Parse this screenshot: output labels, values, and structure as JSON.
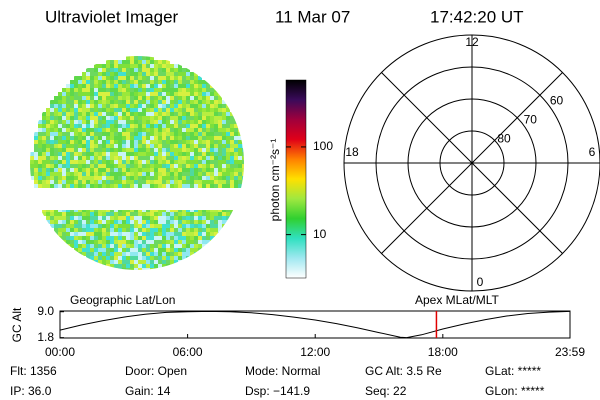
{
  "header": {
    "title": "Ultraviolet Imager",
    "date": "11 Mar 07",
    "time": "17:42:20 UT"
  },
  "chart_data": [
    {
      "type": "colorbar",
      "label": "photon cm⁻²s⁻¹",
      "scale": "log",
      "ylim": [
        3.2,
        580
      ],
      "yticks": [
        10,
        100
      ],
      "colors": [
        "#000000",
        "#3a0a5a",
        "#a0003c",
        "#e00018",
        "#ff8000",
        "#ffe000",
        "#a0e840",
        "#30d030",
        "#30e0c0",
        "#a0e8f0",
        "#ffffff"
      ]
    },
    {
      "type": "polar",
      "rlim": [
        90,
        50
      ],
      "rticks": [
        80,
        70,
        60
      ],
      "thetaticks": [
        0,
        6,
        12,
        18
      ],
      "color": "#000000"
    },
    {
      "type": "line",
      "ylabel": "GC Alt",
      "left_label": "Geographic Lat/Lon",
      "right_label": "Apex MLat/MLT",
      "x": [
        0,
        1,
        2,
        3,
        4,
        5,
        6,
        7,
        8,
        9,
        10,
        11,
        12,
        13,
        14,
        15,
        16,
        16.3,
        17,
        18,
        19,
        20,
        21,
        22,
        23,
        23.98
      ],
      "values": [
        3.9,
        5.3,
        6.5,
        7.5,
        8.3,
        8.8,
        9.0,
        9.1,
        9.0,
        8.7,
        8.2,
        7.5,
        6.7,
        5.7,
        4.5,
        3.2,
        1.9,
        1.8,
        2.6,
        4.2,
        5.6,
        6.8,
        7.8,
        8.5,
        8.9,
        9.1
      ],
      "color": "#000000",
      "xlim": [
        0,
        23.98
      ],
      "ylim": [
        1.7,
        9.2
      ],
      "xticks": [
        {
          "value": 0,
          "label": "00:00"
        },
        {
          "value": 6,
          "label": "06:00"
        },
        {
          "value": 12,
          "label": "12:00"
        },
        {
          "value": 18,
          "label": "18:00"
        },
        {
          "value": 23.98,
          "label": "23:59"
        }
      ],
      "yticks": [
        1.8,
        {
          "value": 9,
          "label": "9.0"
        }
      ],
      "marker_x": 17.7,
      "marker_color": "#e00000"
    }
  ],
  "status": [
    [
      "Flt: 1356",
      "Door: Open",
      "Mode: Normal",
      "GC Alt: 3.5 Re",
      "GLat: *****"
    ],
    [
      "IP: 36.0",
      "Gain: 14",
      "Dsp: −141.9",
      "Seq: 22",
      "GLon: *****"
    ]
  ]
}
